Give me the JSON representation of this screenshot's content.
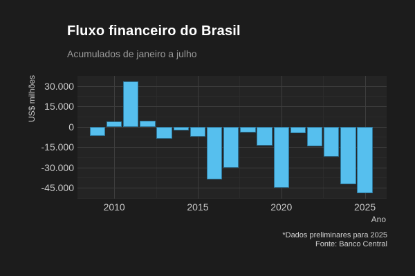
{
  "chart_data": {
    "type": "bar",
    "title": "Fluxo financeiro do Brasil",
    "subtitle": "Acumulados de janeiro a julho",
    "xlabel": "Ano",
    "ylabel": "US$ milhões",
    "x": [
      2009,
      2010,
      2011,
      2012,
      2013,
      2014,
      2015,
      2016,
      2017,
      2018,
      2019,
      2020,
      2021,
      2022,
      2023,
      2024,
      2025
    ],
    "values": [
      -7000,
      4000,
      33400,
      4500,
      -9100,
      -2600,
      -7400,
      -38900,
      -30100,
      -4400,
      -14100,
      -44800,
      -4600,
      -14700,
      -22000,
      -42500,
      -49100
    ],
    "unit": "US$ milhões",
    "ylim": [
      -53100,
      37400
    ],
    "xlim": [
      2007.8,
      2026.3
    ],
    "yticks_major": [
      30000,
      15000,
      0,
      -15000,
      -30000,
      -45000
    ],
    "ytick_labels": [
      "30.000",
      "15.000",
      "0",
      "-15.000",
      "-30.000",
      "-45.000"
    ],
    "yticks_minor": [
      22500,
      7500,
      -7500,
      -22500,
      -37500,
      -52500
    ],
    "xticks_major": [
      2010,
      2015,
      2020,
      2025
    ],
    "xtick_labels": [
      "2010",
      "2015",
      "2020",
      "2025"
    ],
    "xticks_minor": [
      2012.5,
      2017.5,
      2022.5
    ],
    "grid": true,
    "legend": false
  },
  "footer": {
    "note": "*Dados preliminares para 2025",
    "source": "Fonte: Banco Central"
  },
  "colors": {
    "background": "#1c1c1c",
    "panel": "#242424",
    "grid_major": "#3e3e3e",
    "grid_minor": "#2b2b2b",
    "title": "#ffffff",
    "subtitle": "#9b9b9b",
    "tick_label": "#c9c9c9",
    "footer_text": "#d2d2d2",
    "bar_fill": "#56bfee",
    "bar_border": "#2d7599"
  }
}
